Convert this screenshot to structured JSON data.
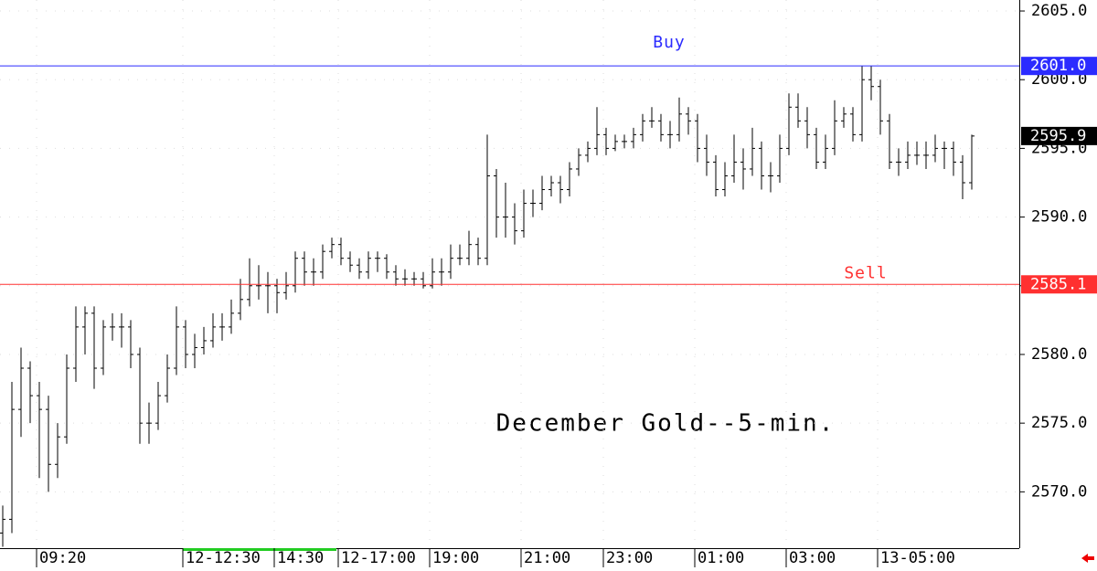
{
  "chart_data": {
    "type": "ohlc",
    "title": "December Gold--5-min.",
    "ylim": [
      2565.9,
      2605.8
    ],
    "yticks": [
      {
        "value": 2570,
        "label": "2570.0"
      },
      {
        "value": 2575,
        "label": "2575.0"
      },
      {
        "value": 2580,
        "label": "2580.0"
      },
      {
        "value": 2585,
        "label": "2585.0"
      },
      {
        "value": 2590,
        "label": "2590.0"
      },
      {
        "value": 2595,
        "label": "2595.0"
      },
      {
        "value": 2600,
        "label": "2600.0"
      },
      {
        "value": 2605,
        "label": "2605.0"
      }
    ],
    "categories": [
      null,
      null,
      null,
      null,
      "09:20",
      null,
      null,
      null,
      null,
      null,
      null,
      null,
      null,
      null,
      null,
      null,
      null,
      null,
      null,
      null,
      "12-12:30",
      null,
      null,
      null,
      null,
      null,
      null,
      null,
      null,
      null,
      "14:30",
      null,
      null,
      null,
      null,
      null,
      null,
      "12-17:00",
      null,
      null,
      null,
      null,
      null,
      null,
      null,
      null,
      null,
      "19:00",
      null,
      null,
      null,
      null,
      null,
      null,
      null,
      null,
      null,
      "21:00",
      null,
      null,
      null,
      null,
      null,
      null,
      null,
      null,
      "23:00",
      null,
      null,
      null,
      null,
      null,
      null,
      null,
      null,
      null,
      "01:00",
      null,
      null,
      null,
      null,
      null,
      null,
      null,
      null,
      null,
      "03:00",
      null,
      null,
      null,
      null,
      null,
      null,
      null,
      null,
      null,
      "13-05:00",
      null,
      null,
      null,
      null,
      null,
      null,
      null,
      null,
      null,
      null
    ],
    "series": [
      {
        "color": "#000000",
        "values": [
          [
            2567,
            2569,
            2566,
            2568
          ],
          [
            2568,
            2578,
            2567,
            2576
          ],
          [
            2576,
            2580.5,
            2574,
            2579
          ],
          [
            2579,
            2579.5,
            2575,
            2577
          ],
          [
            2577,
            2578,
            2571,
            2576
          ],
          [
            2576,
            2577,
            2570,
            2572
          ],
          [
            2572,
            2575,
            2571,
            2574
          ],
          [
            2574,
            2580,
            2573.5,
            2579
          ],
          [
            2579,
            2583.5,
            2578,
            2582
          ],
          [
            2582,
            2583.5,
            2580,
            2583
          ],
          [
            2583,
            2583.5,
            2577.5,
            2579
          ],
          [
            2579,
            2582.5,
            2578.5,
            2582
          ],
          [
            2582,
            2583,
            2581,
            2582
          ],
          [
            2582,
            2583,
            2580.5,
            2582
          ],
          [
            2582,
            2582.5,
            2579,
            2580
          ],
          [
            2580,
            2580.5,
            2573.5,
            2575
          ],
          [
            2575,
            2576.5,
            2573.5,
            2575
          ],
          [
            2575,
            2578,
            2574.5,
            2577
          ],
          [
            2577,
            2580,
            2576.5,
            2579
          ],
          [
            2579,
            2583.5,
            2578.5,
            2582
          ],
          [
            2582,
            2582.5,
            2579,
            2580
          ],
          [
            2580,
            2581.5,
            2579,
            2580.5
          ],
          [
            2580.5,
            2582,
            2580,
            2581
          ],
          [
            2581,
            2583,
            2580.5,
            2582
          ],
          [
            2582,
            2583,
            2581,
            2582
          ],
          [
            2582,
            2584,
            2581.5,
            2583
          ],
          [
            2583,
            2585.5,
            2582.5,
            2584
          ],
          [
            2584,
            2587,
            2583.5,
            2585
          ],
          [
            2585,
            2586.5,
            2584,
            2585
          ],
          [
            2585,
            2586,
            2583,
            2585
          ],
          [
            2585,
            2585.5,
            2583,
            2584.5
          ],
          [
            2584.5,
            2586,
            2584,
            2585
          ],
          [
            2585,
            2587.5,
            2584.5,
            2587
          ],
          [
            2587,
            2587.5,
            2585,
            2586
          ],
          [
            2586,
            2587,
            2585,
            2586
          ],
          [
            2586,
            2588,
            2585.5,
            2587.5
          ],
          [
            2587.5,
            2588.5,
            2587,
            2588
          ],
          [
            2588,
            2588.5,
            2586.5,
            2587
          ],
          [
            2587,
            2587.5,
            2586,
            2586.5
          ],
          [
            2586.5,
            2587,
            2585.5,
            2586
          ],
          [
            2586,
            2587.5,
            2585.5,
            2587
          ],
          [
            2587,
            2587.5,
            2586,
            2587
          ],
          [
            2587,
            2587.3,
            2585.5,
            2586
          ],
          [
            2586,
            2586.5,
            2585,
            2585.5
          ],
          [
            2585.5,
            2586.2,
            2585,
            2585.5
          ],
          [
            2585.5,
            2586,
            2585,
            2585.5
          ],
          [
            2585.5,
            2586,
            2584.8,
            2585
          ],
          [
            2585,
            2587,
            2584.8,
            2586
          ],
          [
            2586,
            2587,
            2585,
            2586
          ],
          [
            2586,
            2588,
            2585.5,
            2587
          ],
          [
            2587,
            2588,
            2586.5,
            2587
          ],
          [
            2587,
            2589,
            2586.5,
            2588
          ],
          [
            2588,
            2588.5,
            2586.5,
            2587
          ],
          [
            2587,
            2596,
            2586.5,
            2593
          ],
          [
            2593,
            2593.5,
            2588.5,
            2590
          ],
          [
            2590,
            2592.5,
            2588.5,
            2590
          ],
          [
            2590,
            2591,
            2588,
            2589
          ],
          [
            2589,
            2592,
            2588.5,
            2591
          ],
          [
            2591,
            2592,
            2590,
            2591
          ],
          [
            2591,
            2593,
            2590.5,
            2592
          ],
          [
            2592,
            2593,
            2591.5,
            2592.5
          ],
          [
            2592.5,
            2593,
            2591,
            2592
          ],
          [
            2592,
            2594,
            2591.5,
            2593.5
          ],
          [
            2593.5,
            2595,
            2593,
            2594.5
          ],
          [
            2594.5,
            2595.5,
            2594,
            2595
          ],
          [
            2595,
            2598,
            2594.5,
            2596
          ],
          [
            2596,
            2596.5,
            2594.5,
            2595
          ],
          [
            2595,
            2596,
            2594.8,
            2595.5
          ],
          [
            2595.5,
            2596,
            2595,
            2595.5
          ],
          [
            2595.5,
            2596.5,
            2595,
            2596
          ],
          [
            2596,
            2597.5,
            2595.5,
            2597
          ],
          [
            2597,
            2598,
            2596.5,
            2597
          ],
          [
            2597,
            2597.5,
            2595.5,
            2596
          ],
          [
            2596,
            2597,
            2595,
            2596
          ],
          [
            2596,
            2598.7,
            2595.5,
            2597.5
          ],
          [
            2597.5,
            2598,
            2596,
            2597
          ],
          [
            2597,
            2597.5,
            2594,
            2595
          ],
          [
            2595,
            2596,
            2593,
            2594
          ],
          [
            2594,
            2594.5,
            2591.5,
            2592
          ],
          [
            2592,
            2594,
            2591.5,
            2593
          ],
          [
            2593,
            2596,
            2592.5,
            2594
          ],
          [
            2594,
            2595,
            2592,
            2593.5
          ],
          [
            2593.5,
            2596.5,
            2593,
            2595
          ],
          [
            2595,
            2595.5,
            2592,
            2593
          ],
          [
            2593,
            2594,
            2591.8,
            2593
          ],
          [
            2593,
            2596,
            2592.5,
            2595
          ],
          [
            2595,
            2599,
            2594.5,
            2598
          ],
          [
            2598,
            2599,
            2596.5,
            2597
          ],
          [
            2597,
            2598,
            2595,
            2596
          ],
          [
            2596,
            2596.5,
            2593.5,
            2594
          ],
          [
            2594,
            2596,
            2593.5,
            2595
          ],
          [
            2595,
            2598.5,
            2594.5,
            2597
          ],
          [
            2597,
            2598,
            2596.5,
            2597.5
          ],
          [
            2597.5,
            2598,
            2595.5,
            2596
          ],
          [
            2596,
            2601,
            2595.5,
            2600
          ],
          [
            2600,
            2601,
            2598.5,
            2599.5
          ],
          [
            2599.5,
            2600,
            2596,
            2597
          ],
          [
            2597,
            2597.5,
            2593.5,
            2594
          ],
          [
            2594,
            2595,
            2593,
            2594
          ],
          [
            2594,
            2595.5,
            2593.5,
            2594.5
          ],
          [
            2594.5,
            2595.5,
            2593.8,
            2594.5
          ],
          [
            2594.5,
            2595.5,
            2593.5,
            2594.5
          ],
          [
            2594.5,
            2596,
            2594,
            2595
          ],
          [
            2595,
            2595.5,
            2593.5,
            2595
          ],
          [
            2595,
            2595.5,
            2593,
            2594
          ],
          [
            2594,
            2594.5,
            2591.3,
            2592.5
          ],
          [
            2592.5,
            2596,
            2592,
            2595.9
          ]
        ]
      }
    ],
    "hlines": [
      {
        "name": "Buy",
        "value": 2601,
        "label": "2601.0",
        "color": "#2b2bff"
      },
      {
        "name": "Sell",
        "value": 2585.1,
        "label": "2585.1",
        "color": "#ff3030"
      }
    ],
    "last_price": {
      "value": 2595.9,
      "label": "2595.9"
    }
  }
}
